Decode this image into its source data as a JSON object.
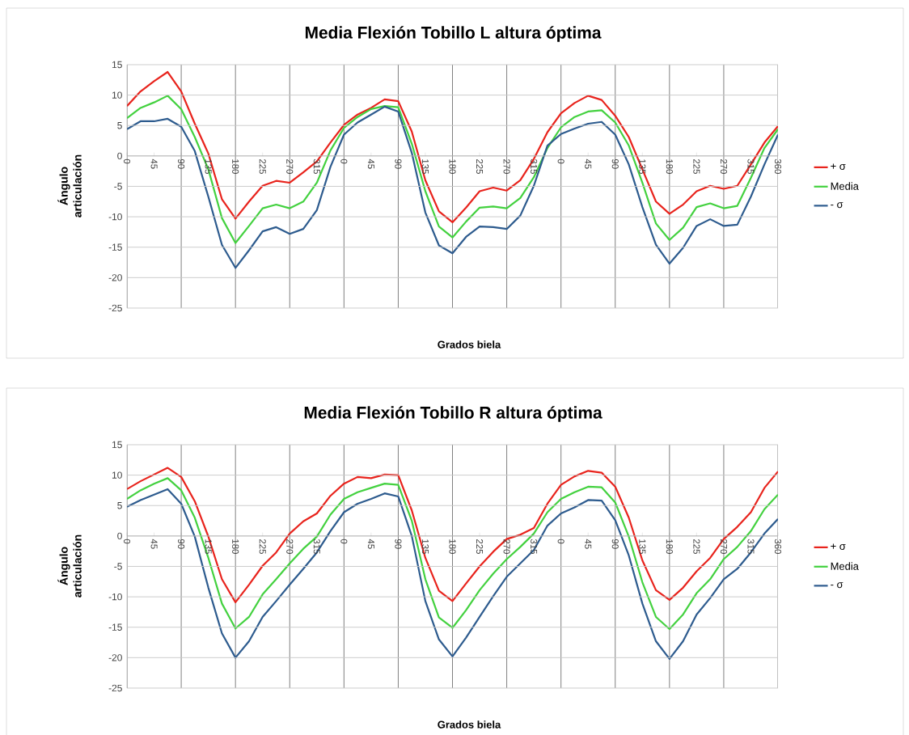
{
  "chart_data": [
    {
      "type": "line",
      "title": "Media Flexión Tobillo L altura óptima",
      "xlabel": "Grados biela",
      "ylabel": "Ángulo articulación",
      "categories": [
        "0",
        null,
        "45",
        null,
        "90",
        null,
        "135",
        null,
        "180",
        null,
        "225",
        null,
        "270",
        null,
        "315",
        null,
        "0",
        null,
        "45",
        null,
        "90",
        null,
        "135",
        null,
        "180",
        null,
        "225",
        null,
        "270",
        null,
        "315",
        null,
        "0",
        null,
        "45",
        null,
        "90",
        null,
        "135",
        null,
        "180",
        null,
        "225",
        null,
        "270",
        null,
        "315",
        null,
        "360"
      ],
      "series": [
        {
          "name": "+ σ",
          "color": "#e8231c",
          "values": [
            8.2,
            10.6,
            12.3,
            13.8,
            10.6,
            5.3,
            0.4,
            -7.1,
            -10.3,
            -7.5,
            -4.9,
            -4.1,
            -4.4,
            -2.7,
            -0.9,
            2.2,
            5.1,
            6.8,
            7.9,
            9.3,
            9.0,
            4.0,
            -4.0,
            -9.1,
            -10.9,
            -8.5,
            -5.8,
            -5.2,
            -5.7,
            -4.0,
            -0.5,
            3.9,
            7.0,
            8.7,
            9.9,
            9.2,
            6.6,
            3.1,
            -2.2,
            -7.5,
            -9.5,
            -8.0,
            -5.8,
            -4.9,
            -5.4,
            -4.9,
            -1.4,
            2.2,
            4.9
          ]
        },
        {
          "name": "Media",
          "color": "#43d13f",
          "values": [
            6.2,
            7.9,
            8.8,
            9.9,
            7.7,
            3.1,
            -2.2,
            -10.2,
            -14.3,
            -11.5,
            -8.6,
            -8.0,
            -8.6,
            -7.5,
            -4.4,
            0.9,
            4.6,
            6.4,
            7.7,
            8.2,
            8.0,
            2.0,
            -5.8,
            -11.6,
            -13.4,
            -10.8,
            -8.5,
            -8.3,
            -8.6,
            -6.9,
            -3.5,
            1.3,
            4.7,
            6.4,
            7.3,
            7.5,
            5.5,
            1.7,
            -4.4,
            -11.1,
            -13.8,
            -11.8,
            -8.4,
            -7.8,
            -8.6,
            -8.2,
            -3.6,
            1.3,
            4.4
          ]
        },
        {
          "name": "- σ",
          "color": "#2d5b8e",
          "values": [
            4.4,
            5.7,
            5.7,
            6.1,
            4.8,
            0.8,
            -6.7,
            -14.6,
            -18.4,
            -15.5,
            -12.4,
            -11.7,
            -12.8,
            -12.0,
            -8.9,
            -1.8,
            3.5,
            5.5,
            6.8,
            8.1,
            7.3,
            0.5,
            -9.3,
            -14.7,
            -16.0,
            -13.3,
            -11.6,
            -11.7,
            -12.0,
            -9.8,
            -4.9,
            1.7,
            3.6,
            4.5,
            5.3,
            5.6,
            3.5,
            -1.4,
            -8.4,
            -14.6,
            -17.7,
            -15.1,
            -11.5,
            -10.4,
            -11.5,
            -11.3,
            -6.7,
            -1.4,
            3.5
          ]
        }
      ],
      "ylim": [
        -25,
        15
      ],
      "yticks": [
        -25,
        -20,
        -15,
        -10,
        -5,
        0,
        5,
        10,
        15
      ],
      "grid": true,
      "legend": "right"
    },
    {
      "type": "line",
      "title": "Media Flexión Tobillo R altura óptima",
      "xlabel": "Grados biela",
      "ylabel": "Ángulo articulación",
      "categories": [
        "0",
        null,
        "45",
        null,
        "90",
        null,
        "135",
        null,
        "180",
        null,
        "225",
        null,
        "270",
        null,
        "315",
        null,
        "0",
        null,
        "45",
        null,
        "90",
        null,
        "135",
        null,
        "180",
        null,
        "225",
        null,
        "270",
        null,
        "315",
        null,
        "0",
        null,
        "45",
        null,
        "90",
        null,
        "135",
        null,
        "180",
        null,
        "225",
        null,
        "270",
        null,
        "315",
        null,
        "360"
      ],
      "series": [
        {
          "name": "+ σ",
          "color": "#e8231c",
          "values": [
            7.7,
            9.0,
            10.1,
            11.2,
            9.7,
            5.7,
            -0.1,
            -7.1,
            -10.9,
            -8.0,
            -4.9,
            -2.7,
            0.4,
            2.4,
            3.7,
            6.6,
            8.6,
            9.7,
            9.5,
            10.1,
            10.0,
            4.2,
            -3.6,
            -9.0,
            -10.7,
            -7.8,
            -5.0,
            -2.6,
            -0.5,
            0.2,
            1.3,
            5.3,
            8.4,
            9.8,
            10.7,
            10.4,
            8.1,
            3.0,
            -4.0,
            -8.9,
            -10.5,
            -8.5,
            -5.8,
            -3.6,
            -0.5,
            1.5,
            3.9,
            7.9,
            10.6
          ]
        },
        {
          "name": "Media",
          "color": "#43d13f",
          "values": [
            6.1,
            7.5,
            8.6,
            9.5,
            7.5,
            3.0,
            -3.6,
            -11.1,
            -15.2,
            -13.3,
            -9.6,
            -7.1,
            -4.5,
            -2.1,
            -0.1,
            3.5,
            6.1,
            7.2,
            7.9,
            8.6,
            8.4,
            2.5,
            -7.1,
            -13.4,
            -15.1,
            -12.2,
            -8.9,
            -6.2,
            -3.8,
            -1.8,
            0.4,
            3.9,
            6.1,
            7.2,
            8.1,
            8.0,
            5.5,
            -0.1,
            -7.6,
            -13.3,
            -15.3,
            -12.9,
            -9.4,
            -7.1,
            -3.8,
            -1.8,
            0.8,
            4.4,
            6.8
          ]
        },
        {
          "name": "- σ",
          "color": "#2d5b8e",
          "values": [
            4.8,
            5.9,
            6.8,
            7.7,
            5.3,
            -0.1,
            -8.5,
            -16.0,
            -20.0,
            -17.3,
            -13.3,
            -10.7,
            -8.0,
            -5.4,
            -2.7,
            0.8,
            3.9,
            5.3,
            6.1,
            7.0,
            6.5,
            0.0,
            -10.7,
            -17.0,
            -19.8,
            -16.7,
            -13.3,
            -9.9,
            -6.7,
            -4.5,
            -2.3,
            1.7,
            3.7,
            4.7,
            5.9,
            5.8,
            2.6,
            -3.2,
            -11.1,
            -17.3,
            -20.2,
            -17.3,
            -12.9,
            -10.2,
            -7.1,
            -5.4,
            -2.7,
            0.4,
            2.8
          ]
        }
      ],
      "ylim": [
        -25,
        15
      ],
      "yticks": [
        -25,
        -20,
        -15,
        -10,
        -5,
        0,
        5,
        10,
        15
      ],
      "grid": true,
      "legend": "right"
    }
  ]
}
